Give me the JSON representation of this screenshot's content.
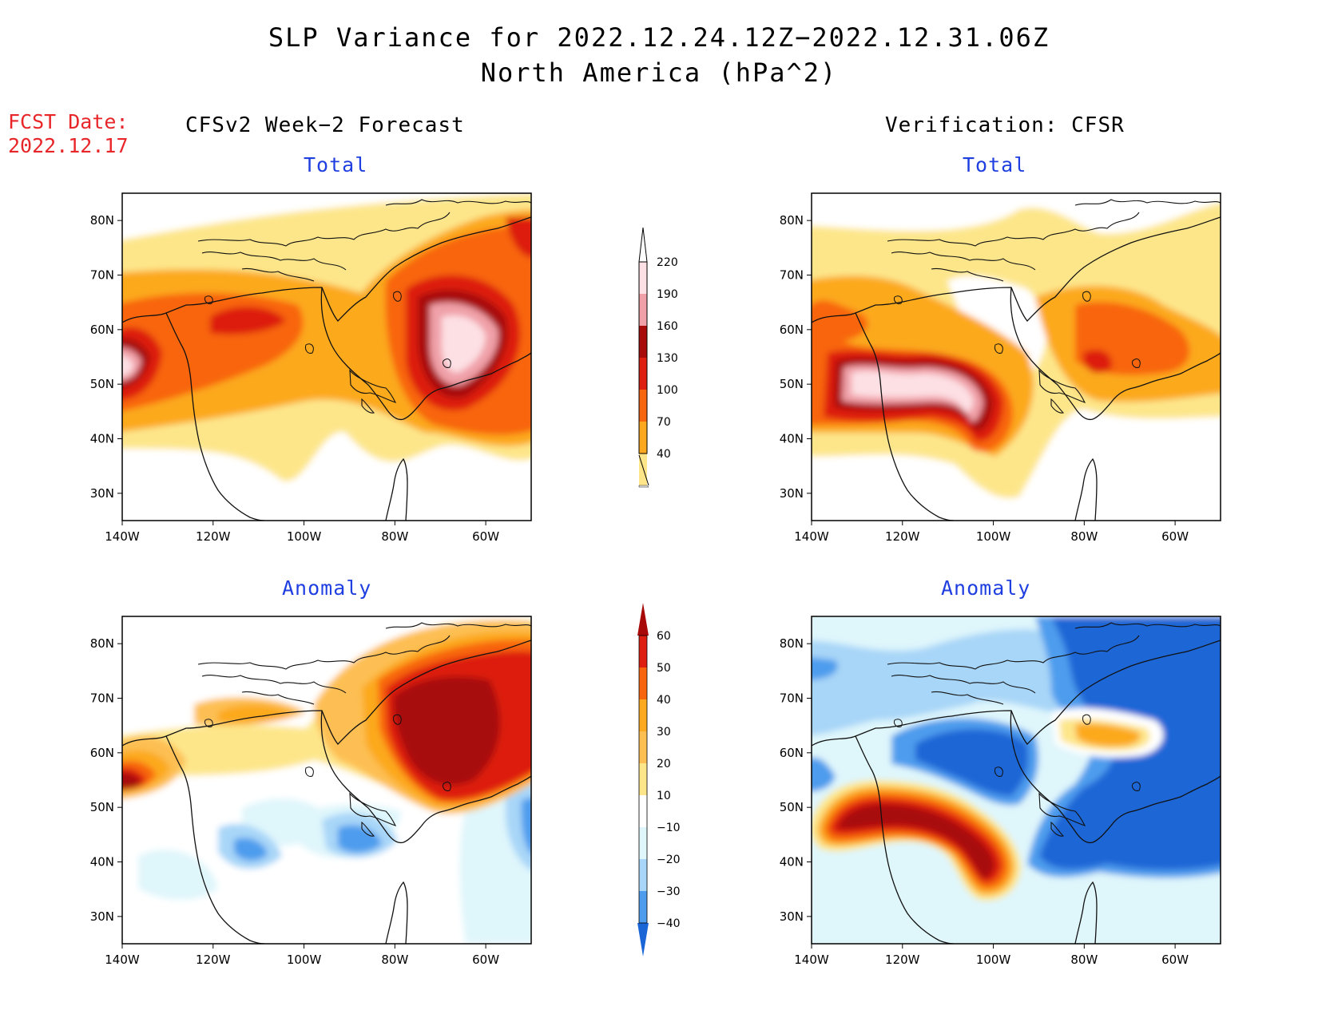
{
  "title": {
    "line1": "SLP Variance for 2022.12.24.12Z−2022.12.31.06Z",
    "line2": "North America (hPa^2)"
  },
  "fcst": {
    "label": "FCST Date:",
    "date": "2022.12.17"
  },
  "columns": {
    "left": "CFSv2 Week−2 Forecast",
    "right": "Verification: CFSR"
  },
  "panels": {
    "top_left": "Total",
    "top_right": "Total",
    "bottom_left": "Anomaly",
    "bottom_right": "Anomaly"
  },
  "axes": {
    "lat_labels": [
      "80N",
      "70N",
      "60N",
      "50N",
      "40N",
      "30N"
    ],
    "lon_labels": [
      "140W",
      "120W",
      "100W",
      "80W",
      "60W"
    ]
  },
  "colorbar_total": {
    "levels": [
      "40",
      "70",
      "100",
      "130",
      "160",
      "190",
      "220"
    ],
    "colors": [
      "#ffffff",
      "#fde68a",
      "#fca91f",
      "#f8650f",
      "#dd1e10",
      "#a80a0a",
      "#f0a0a8",
      "#fde0e4"
    ]
  },
  "colorbar_anomaly": {
    "levels": [
      "60",
      "50",
      "40",
      "30",
      "20",
      "10",
      "−10",
      "−20",
      "−30",
      "−40"
    ],
    "colors": [
      "#a80a0a",
      "#dd1e10",
      "#f8650f",
      "#fca91f",
      "#fdbf52",
      "#fde68a",
      "#ffffff",
      "#dff6fb",
      "#a8d6f8",
      "#4d9ced",
      "#1a66d6",
      "#0a56c4"
    ]
  }
}
